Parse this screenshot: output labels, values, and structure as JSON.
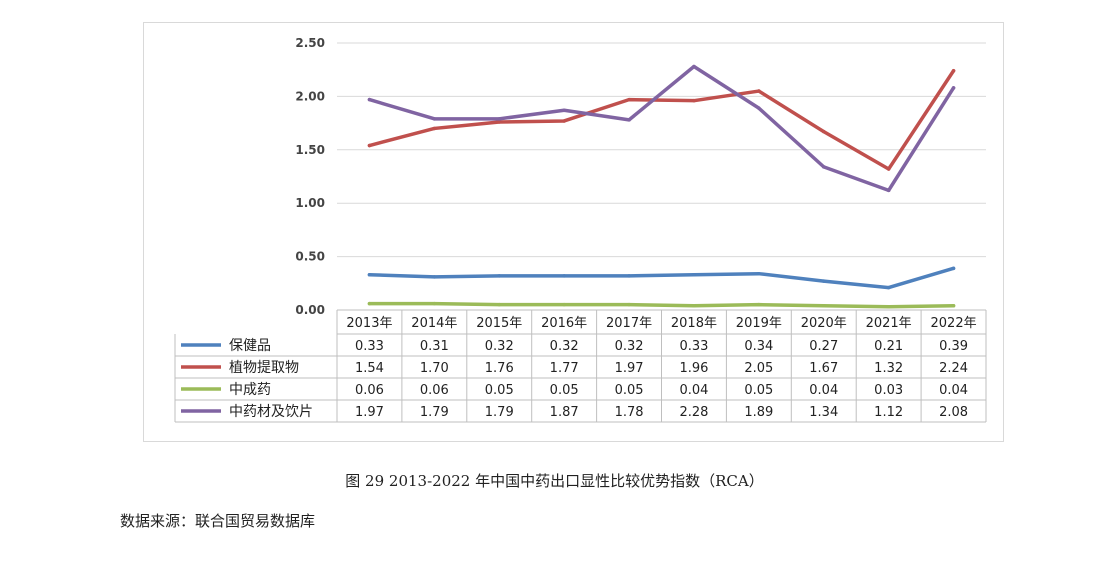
{
  "caption": "图 29 2013-2022 年中国中药出口显性比较优势指数（RCA）",
  "source": "数据来源：联合国贸易数据库",
  "chart_data": {
    "type": "line",
    "title": "",
    "xlabel": "",
    "ylabel": "",
    "ylim": [
      0,
      2.5
    ],
    "y_ticks": [
      "0.00",
      "0.50",
      "1.00",
      "1.50",
      "2.00",
      "2.50"
    ],
    "categories": [
      "2013年",
      "2014年",
      "2015年",
      "2016年",
      "2017年",
      "2018年",
      "2019年",
      "2020年",
      "2021年",
      "2022年"
    ],
    "grid": true,
    "legend": "data-table",
    "series": [
      {
        "name": "保健品",
        "color": "#4f81bd",
        "values": [
          0.33,
          0.31,
          0.32,
          0.32,
          0.32,
          0.33,
          0.34,
          0.27,
          0.21,
          0.39
        ],
        "labels": [
          "0.33",
          "0.31",
          "0.32",
          "0.32",
          "0.32",
          "0.33",
          "0.34",
          "0.27",
          "0.21",
          "0.39"
        ]
      },
      {
        "name": "植物提取物",
        "color": "#c0504d",
        "values": [
          1.54,
          1.7,
          1.76,
          1.77,
          1.97,
          1.96,
          2.05,
          1.67,
          1.32,
          2.24
        ],
        "labels": [
          "1.54",
          "1.70",
          "1.76",
          "1.77",
          "1.97",
          "1.96",
          "2.05",
          "1.67",
          "1.32",
          "2.24"
        ]
      },
      {
        "name": "中成药",
        "color": "#9bbb59",
        "values": [
          0.06,
          0.06,
          0.05,
          0.05,
          0.05,
          0.04,
          0.05,
          0.04,
          0.03,
          0.04
        ],
        "labels": [
          "0.06",
          "0.06",
          "0.05",
          "0.05",
          "0.05",
          "0.04",
          "0.05",
          "0.04",
          "0.03",
          "0.04"
        ]
      },
      {
        "name": "中药材及饮片",
        "color": "#8064a2",
        "values": [
          1.97,
          1.79,
          1.79,
          1.87,
          1.78,
          2.28,
          1.89,
          1.34,
          1.12,
          2.08
        ],
        "labels": [
          "1.97",
          "1.79",
          "1.79",
          "1.87",
          "1.78",
          "2.28",
          "1.89",
          "1.34",
          "1.12",
          "2.08"
        ]
      }
    ]
  }
}
